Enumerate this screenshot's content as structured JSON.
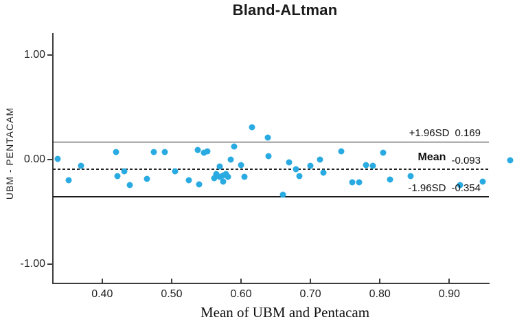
{
  "title": "Bland-ALtman",
  "colors": {
    "marker": "#29abe2",
    "axis": "#3d3d3d",
    "line": "#1a1a1a",
    "text": "#222222"
  },
  "chart_data": {
    "type": "scatter",
    "title": "Bland-ALtman",
    "xlabel": "Mean of UBM and Pentacam",
    "ylabel": "UBM - PENTACAM",
    "xlim": [
      0.329,
      0.957
    ],
    "ylim": [
      -1.184,
      1.211
    ],
    "grid": false,
    "marker_color": "#29abe2",
    "x_ticks": [
      {
        "value": 0.4,
        "label": "0.40"
      },
      {
        "value": 0.5,
        "label": "0.50"
      },
      {
        "value": 0.6,
        "label": "0.60"
      },
      {
        "value": 0.7,
        "label": "0.70"
      },
      {
        "value": 0.8,
        "label": "0.80"
      },
      {
        "value": 0.9,
        "label": "0.90"
      }
    ],
    "y_ticks": [
      {
        "value": 1.0,
        "label": "1.00"
      },
      {
        "value": 0.0,
        "label": "0.00"
      },
      {
        "value": -1.0,
        "label": "-1.00"
      }
    ],
    "reference_lines": [
      {
        "name": "loa-upper",
        "label": "+1.96SD",
        "value_label": "0.169",
        "value": 0.169,
        "style": "solid"
      },
      {
        "name": "mean",
        "label": "Mean",
        "value_label": "-0.093",
        "value": -0.093,
        "style": "dashed"
      },
      {
        "name": "loa-lower",
        "label": "-1.96SD",
        "value_label": "-0.354",
        "value": -0.354,
        "style": "solid"
      }
    ],
    "points": [
      [
        0.336,
        0.007
      ],
      [
        0.352,
        -0.197
      ],
      [
        0.37,
        -0.059
      ],
      [
        0.42,
        0.072
      ],
      [
        0.422,
        -0.158
      ],
      [
        0.432,
        -0.112
      ],
      [
        0.44,
        -0.243
      ],
      [
        0.464,
        -0.184
      ],
      [
        0.474,
        0.072
      ],
      [
        0.49,
        0.072
      ],
      [
        0.505,
        -0.112
      ],
      [
        0.525,
        -0.197
      ],
      [
        0.538,
        0.092
      ],
      [
        0.54,
        -0.237
      ],
      [
        0.547,
        0.066
      ],
      [
        0.552,
        0.079
      ],
      [
        0.561,
        -0.178
      ],
      [
        0.564,
        -0.138
      ],
      [
        0.569,
        -0.066
      ],
      [
        0.569,
        -0.164
      ],
      [
        0.574,
        -0.151
      ],
      [
        0.574,
        -0.211
      ],
      [
        0.578,
        -0.138
      ],
      [
        0.581,
        -0.164
      ],
      [
        0.585,
        0.0
      ],
      [
        0.59,
        0.125
      ],
      [
        0.6,
        -0.053
      ],
      [
        0.605,
        -0.164
      ],
      [
        0.616,
        0.31
      ],
      [
        0.639,
        0.21
      ],
      [
        0.64,
        0.033
      ],
      [
        0.66,
        -0.336
      ],
      [
        0.669,
        -0.026
      ],
      [
        0.679,
        -0.092
      ],
      [
        0.684,
        -0.158
      ],
      [
        0.7,
        -0.059
      ],
      [
        0.714,
        0.0
      ],
      [
        0.719,
        -0.125
      ],
      [
        0.744,
        0.079
      ],
      [
        0.76,
        -0.217
      ],
      [
        0.77,
        -0.217
      ],
      [
        0.78,
        -0.053
      ],
      [
        0.79,
        -0.059
      ],
      [
        0.805,
        0.066
      ],
      [
        0.815,
        -0.191
      ],
      [
        0.844,
        -0.158
      ],
      [
        0.915,
        -0.243
      ],
      [
        0.948,
        -0.211
      ],
      [
        0.988,
        -0.007
      ]
    ]
  }
}
